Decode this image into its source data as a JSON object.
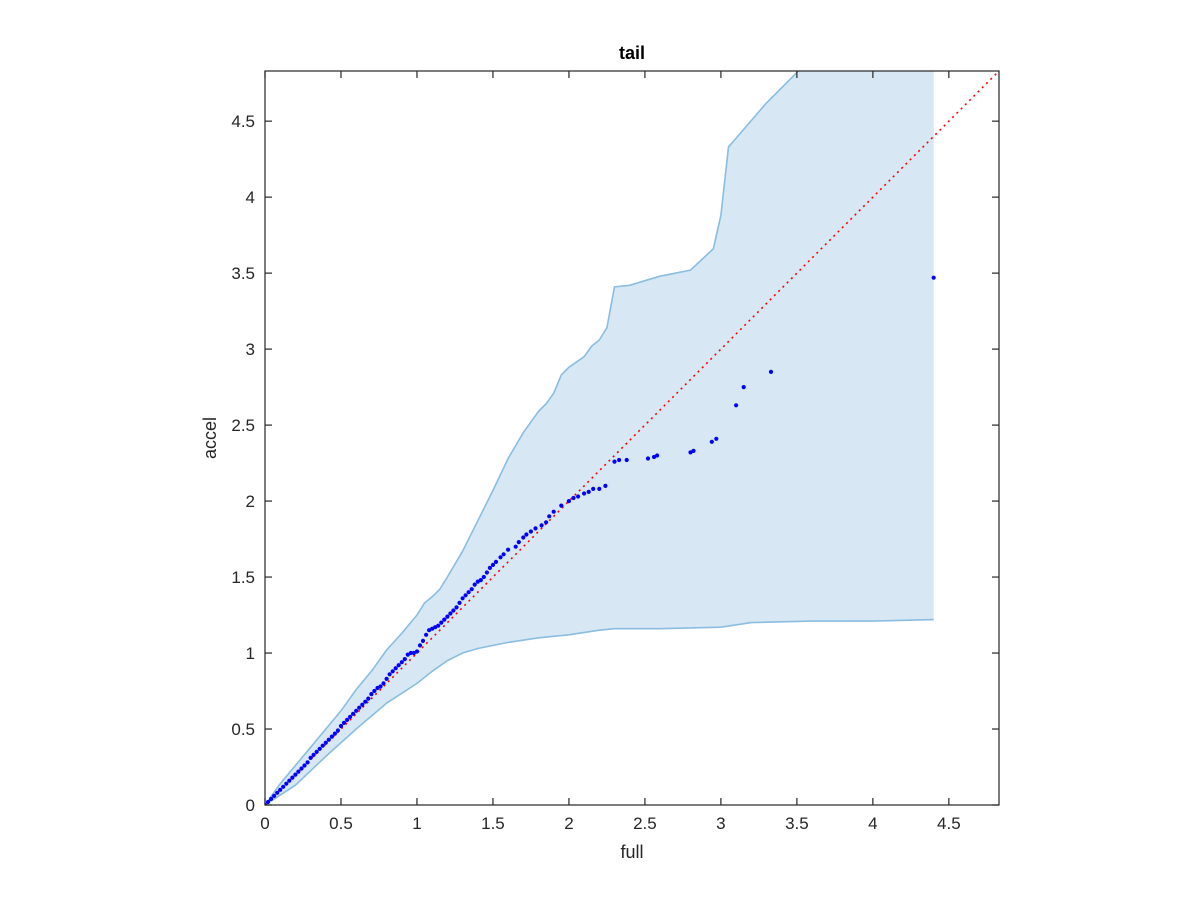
{
  "chart_data": {
    "type": "scatter",
    "title": "tail",
    "xlabel": "full",
    "ylabel": "accel",
    "xlim": [
      0,
      4.83
    ],
    "ylim": [
      0,
      4.83
    ],
    "xticks": [
      "0",
      "0.5",
      "1",
      "1.5",
      "2",
      "2.5",
      "3",
      "3.5",
      "4",
      "4.5"
    ],
    "yticks": [
      "0",
      "0.5",
      "1",
      "1.5",
      "2",
      "2.5",
      "3",
      "3.5",
      "4",
      "4.5"
    ],
    "grid": false,
    "colors": {
      "points": "#0000ff",
      "reference_line": "#ff0000",
      "band_fill": "#d7e8f4",
      "band_edge": "#8bbde0",
      "axes": "#262626"
    },
    "reference_line": {
      "from": [
        0,
        0
      ],
      "to": [
        4.83,
        4.83
      ]
    },
    "band_upper": [
      [
        0,
        0
      ],
      [
        0.1,
        0.14
      ],
      [
        0.2,
        0.26
      ],
      [
        0.3,
        0.38
      ],
      [
        0.4,
        0.5
      ],
      [
        0.5,
        0.62
      ],
      [
        0.6,
        0.76
      ],
      [
        0.7,
        0.88
      ],
      [
        0.8,
        1.02
      ],
      [
        0.9,
        1.13
      ],
      [
        1.0,
        1.25
      ],
      [
        1.05,
        1.33
      ],
      [
        1.1,
        1.37
      ],
      [
        1.15,
        1.42
      ],
      [
        1.2,
        1.5
      ],
      [
        1.3,
        1.67
      ],
      [
        1.4,
        1.87
      ],
      [
        1.5,
        2.07
      ],
      [
        1.6,
        2.28
      ],
      [
        1.7,
        2.45
      ],
      [
        1.8,
        2.59
      ],
      [
        1.85,
        2.64
      ],
      [
        1.9,
        2.71
      ],
      [
        1.95,
        2.83
      ],
      [
        2.0,
        2.88
      ],
      [
        2.1,
        2.95
      ],
      [
        2.15,
        3.02
      ],
      [
        2.2,
        3.06
      ],
      [
        2.25,
        3.14
      ],
      [
        2.3,
        3.41
      ],
      [
        2.4,
        3.42
      ],
      [
        2.5,
        3.45
      ],
      [
        2.6,
        3.48
      ],
      [
        2.8,
        3.52
      ],
      [
        2.95,
        3.66
      ],
      [
        3.0,
        3.88
      ],
      [
        3.05,
        4.33
      ],
      [
        3.3,
        4.62
      ],
      [
        3.55,
        4.87
      ],
      [
        4.4,
        4.87
      ]
    ],
    "band_lower": [
      [
        0,
        0
      ],
      [
        0.2,
        0.13
      ],
      [
        0.4,
        0.32
      ],
      [
        0.6,
        0.5
      ],
      [
        0.8,
        0.67
      ],
      [
        1.0,
        0.8
      ],
      [
        1.1,
        0.88
      ],
      [
        1.2,
        0.95
      ],
      [
        1.3,
        1.0
      ],
      [
        1.4,
        1.03
      ],
      [
        1.6,
        1.07
      ],
      [
        1.8,
        1.1
      ],
      [
        2.0,
        1.12
      ],
      [
        2.2,
        1.15
      ],
      [
        2.3,
        1.16
      ],
      [
        2.6,
        1.16
      ],
      [
        3.0,
        1.17
      ],
      [
        3.2,
        1.2
      ],
      [
        3.6,
        1.21
      ],
      [
        4.0,
        1.21
      ],
      [
        4.4,
        1.22
      ]
    ],
    "x": [
      0.0,
      0.02,
      0.04,
      0.06,
      0.08,
      0.1,
      0.12,
      0.14,
      0.16,
      0.18,
      0.2,
      0.22,
      0.24,
      0.26,
      0.28,
      0.3,
      0.32,
      0.34,
      0.36,
      0.38,
      0.4,
      0.42,
      0.44,
      0.46,
      0.48,
      0.5,
      0.52,
      0.54,
      0.56,
      0.58,
      0.6,
      0.62,
      0.64,
      0.66,
      0.68,
      0.7,
      0.72,
      0.74,
      0.76,
      0.78,
      0.8,
      0.82,
      0.84,
      0.86,
      0.88,
      0.9,
      0.92,
      0.94,
      0.96,
      0.98,
      1.0,
      1.02,
      1.04,
      1.06,
      1.08,
      1.1,
      1.12,
      1.14,
      1.16,
      1.18,
      1.2,
      1.22,
      1.24,
      1.26,
      1.28,
      1.3,
      1.32,
      1.34,
      1.36,
      1.38,
      1.4,
      1.42,
      1.44,
      1.46,
      1.48,
      1.5,
      1.52,
      1.55,
      1.57,
      1.6,
      1.65,
      1.67,
      1.7,
      1.72,
      1.75,
      1.78,
      1.82,
      1.85,
      1.87,
      1.9,
      1.95,
      2.0,
      2.03,
      2.06,
      2.1,
      2.13,
      2.16,
      2.2,
      2.24,
      2.3,
      2.33,
      2.38,
      2.52,
      2.56,
      2.58,
      2.8,
      2.82,
      2.94,
      2.97,
      3.1,
      3.15,
      3.33,
      4.4
    ],
    "y": [
      0.0,
      0.02,
      0.04,
      0.06,
      0.08,
      0.1,
      0.12,
      0.14,
      0.16,
      0.18,
      0.2,
      0.22,
      0.24,
      0.26,
      0.28,
      0.31,
      0.33,
      0.35,
      0.37,
      0.39,
      0.41,
      0.43,
      0.45,
      0.47,
      0.49,
      0.52,
      0.54,
      0.56,
      0.58,
      0.6,
      0.62,
      0.64,
      0.66,
      0.68,
      0.7,
      0.73,
      0.75,
      0.77,
      0.78,
      0.8,
      0.83,
      0.86,
      0.88,
      0.9,
      0.92,
      0.94,
      0.96,
      0.99,
      1.0,
      1.0,
      1.01,
      1.05,
      1.08,
      1.12,
      1.15,
      1.16,
      1.17,
      1.18,
      1.2,
      1.22,
      1.24,
      1.26,
      1.28,
      1.3,
      1.33,
      1.36,
      1.38,
      1.4,
      1.42,
      1.45,
      1.47,
      1.48,
      1.5,
      1.53,
      1.56,
      1.58,
      1.6,
      1.63,
      1.65,
      1.68,
      1.7,
      1.73,
      1.76,
      1.78,
      1.8,
      1.82,
      1.84,
      1.86,
      1.9,
      1.93,
      1.97,
      2.0,
      2.02,
      2.03,
      2.05,
      2.06,
      2.08,
      2.08,
      2.1,
      2.26,
      2.27,
      2.27,
      2.28,
      2.29,
      2.3,
      2.32,
      2.33,
      2.39,
      2.41,
      2.63,
      2.75,
      2.85,
      3.47
    ]
  }
}
